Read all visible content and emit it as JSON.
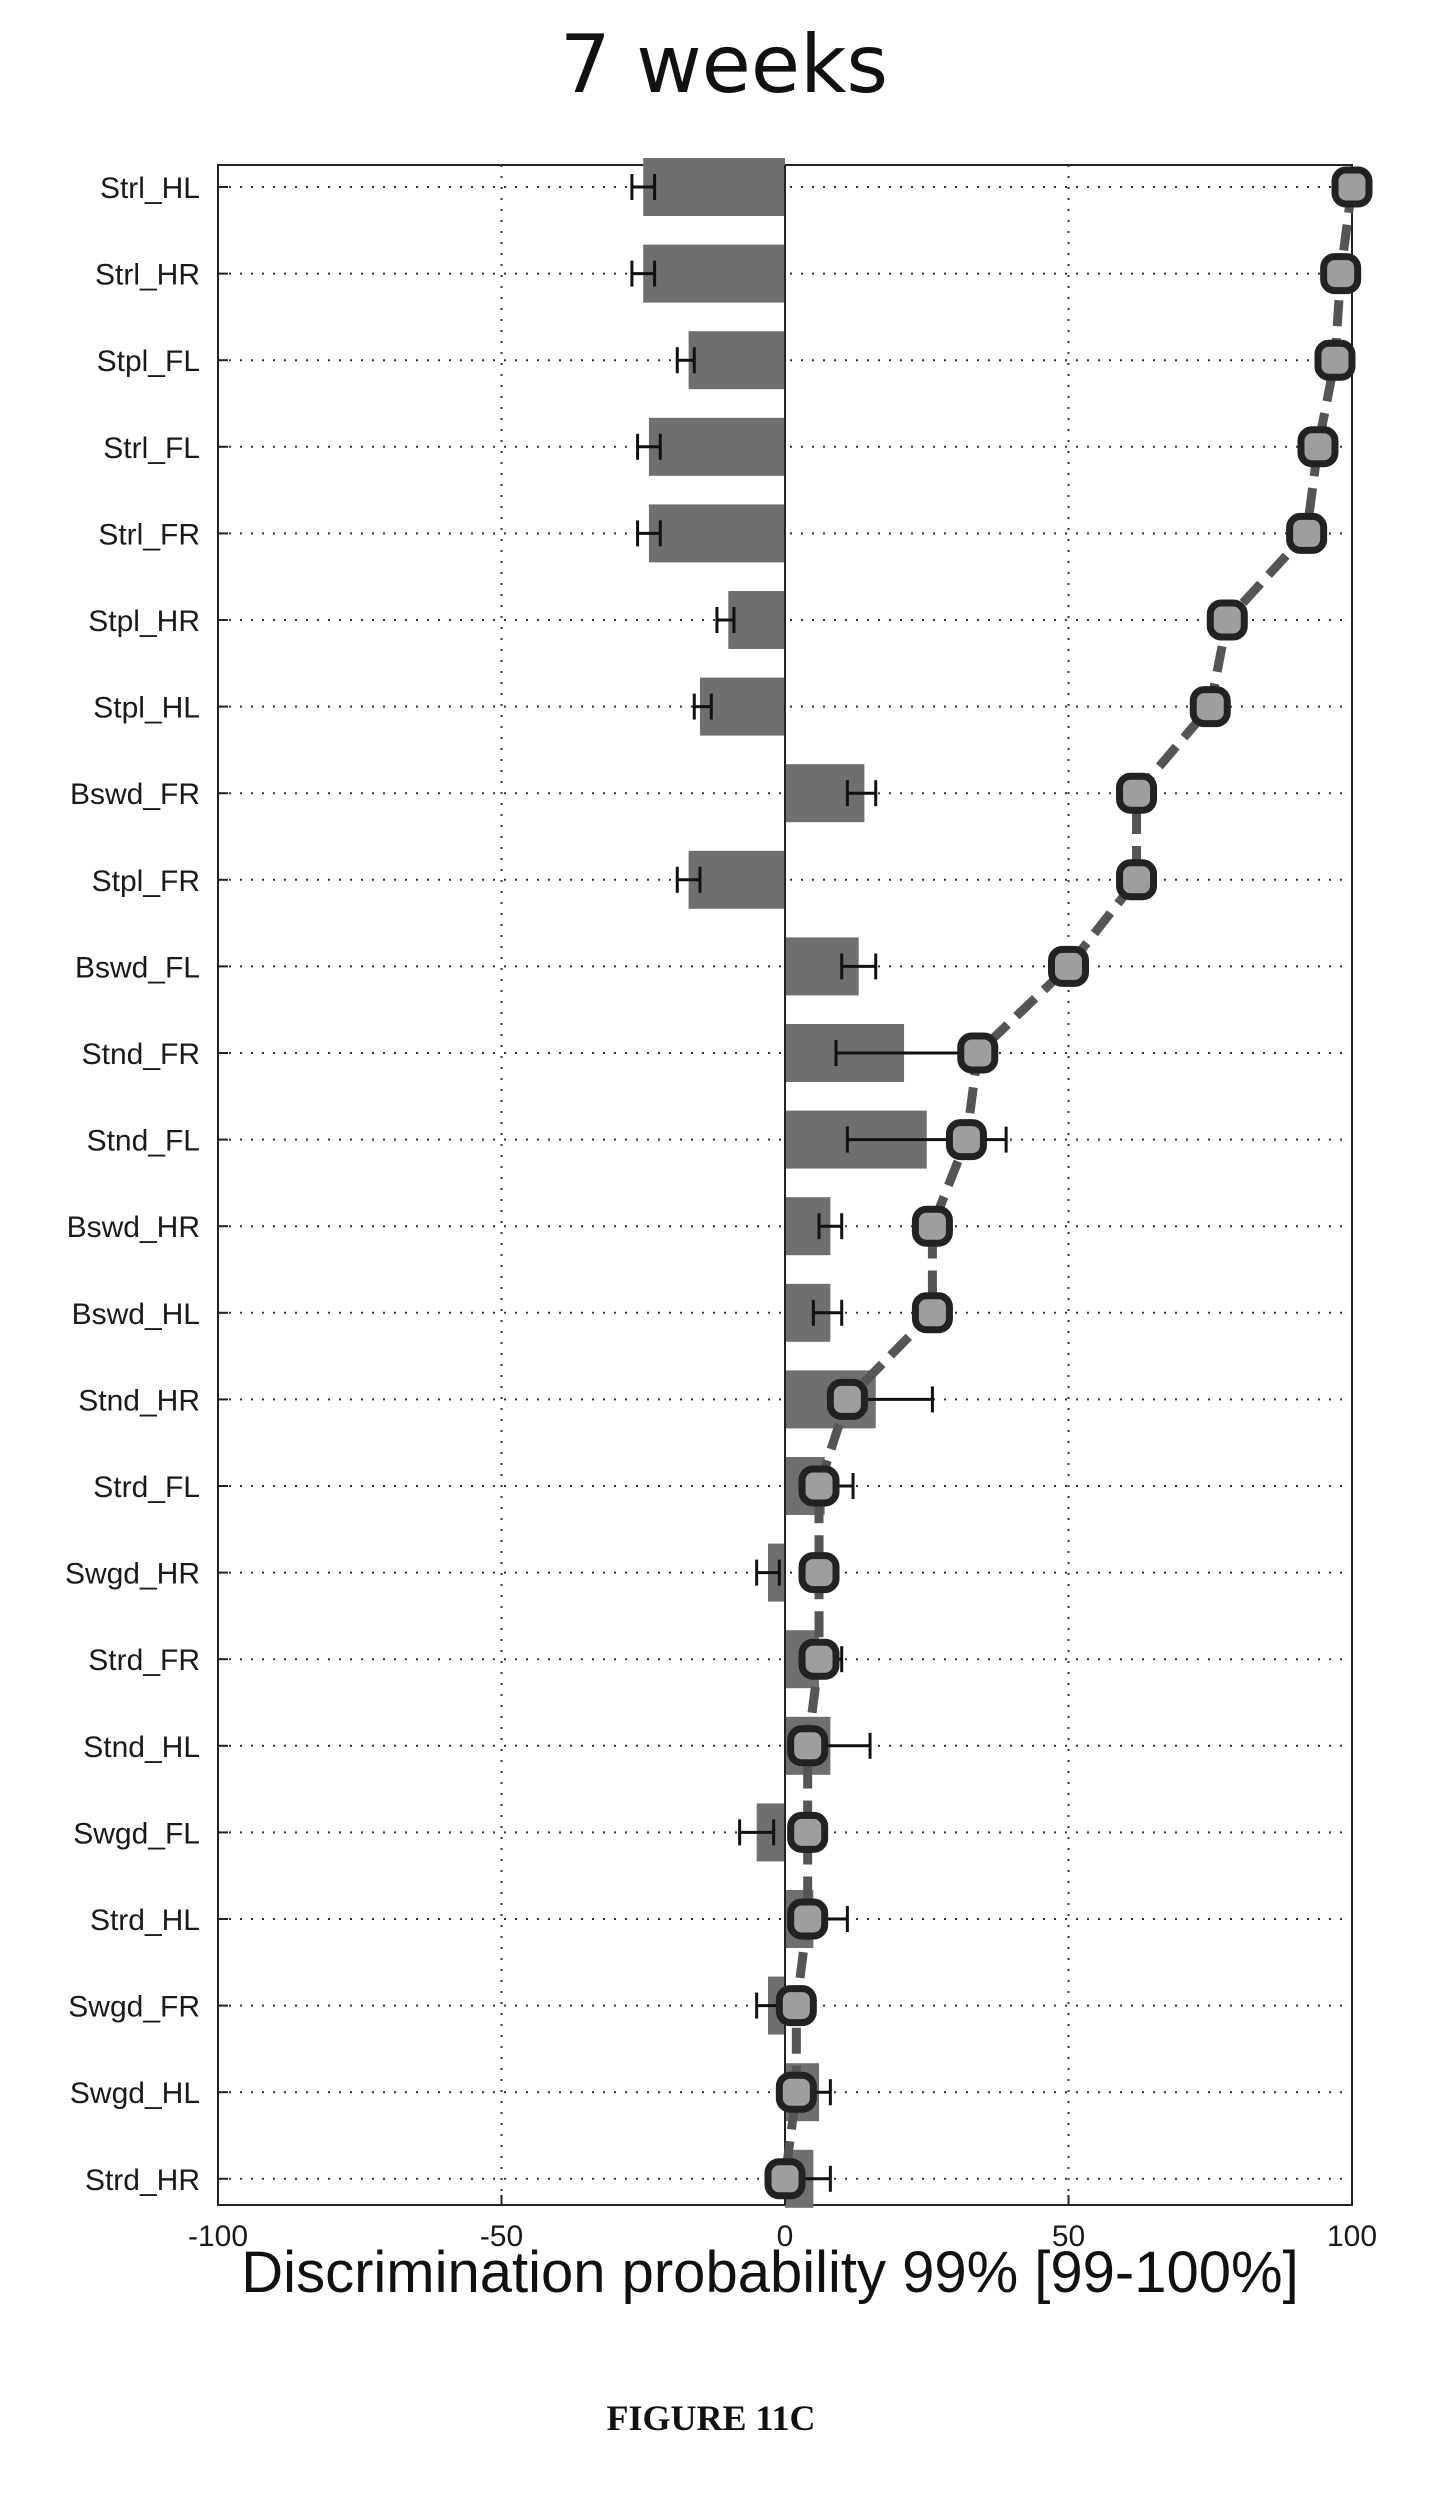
{
  "chart_data": {
    "type": "bar",
    "title": "7 weeks",
    "xlabel": "Discrimination probability 99% [99-100%]",
    "ylabel": "",
    "xlim": [
      -100,
      100
    ],
    "xticks": [
      "-100",
      "-50",
      "0",
      "50",
      "100"
    ],
    "grid": true,
    "categories": [
      "Strl_HL",
      "Strl_HR",
      "Stpl_FL",
      "Strl_FL",
      "Strl_FR",
      "Stpl_HR",
      "Stpl_HL",
      "Bswd_FR",
      "Stpl_FR",
      "Bswd_FL",
      "Stnd_FR",
      "Stnd_FL",
      "Bswd_HR",
      "Bswd_HL",
      "Stnd_HR",
      "Strd_FL",
      "Swgd_HR",
      "Strd_FR",
      "Stnd_HL",
      "Swgd_FL",
      "Strd_HL",
      "Swgd_FR",
      "Swgd_HL",
      "Strd_HR"
    ],
    "bars": [
      {
        "value": -25,
        "err_low": -27,
        "err_high": -23
      },
      {
        "value": -25,
        "err_low": -27,
        "err_high": -23
      },
      {
        "value": -17,
        "err_low": -19,
        "err_high": -16
      },
      {
        "value": -24,
        "err_low": -26,
        "err_high": -22
      },
      {
        "value": -24,
        "err_low": -26,
        "err_high": -22
      },
      {
        "value": -10,
        "err_low": -12,
        "err_high": -9
      },
      {
        "value": -15,
        "err_low": -16,
        "err_high": -13
      },
      {
        "value": 14,
        "err_low": 11,
        "err_high": 16
      },
      {
        "value": -17,
        "err_low": -19,
        "err_high": -15
      },
      {
        "value": 13,
        "err_low": 10,
        "err_high": 16
      },
      {
        "value": 21,
        "err_low": 9,
        "err_high": 33
      },
      {
        "value": 25,
        "err_low": 11,
        "err_high": 39
      },
      {
        "value": 8,
        "err_low": 6,
        "err_high": 10
      },
      {
        "value": 8,
        "err_low": 5,
        "err_high": 10
      },
      {
        "value": 16,
        "err_low": 8,
        "err_high": 26
      },
      {
        "value": 7,
        "err_low": 3,
        "err_high": 12
      },
      {
        "value": -3,
        "err_low": -5,
        "err_high": -1
      },
      {
        "value": 6,
        "err_low": 3,
        "err_high": 10
      },
      {
        "value": 8,
        "err_low": 2,
        "err_high": 15
      },
      {
        "value": -5,
        "err_low": -8,
        "err_high": -2
      },
      {
        "value": 5,
        "err_low": 1,
        "err_high": 11
      },
      {
        "value": -3,
        "err_low": -5,
        "err_high": -1
      },
      {
        "value": 6,
        "err_low": 2,
        "err_high": 8
      },
      {
        "value": 5,
        "err_low": 0,
        "err_high": 8
      }
    ],
    "line_values": [
      100,
      98,
      97,
      94,
      92,
      78,
      75,
      62,
      62,
      50,
      34,
      32,
      26,
      26,
      11,
      6,
      6,
      6,
      4,
      4,
      4,
      2,
      2,
      0
    ],
    "colors": {
      "bar": "#6f6f6f",
      "line": "#555555",
      "marker_fill": "#9e9e9e",
      "marker_edge": "#222222",
      "grid": "#333333"
    }
  },
  "caption": "FIGURE 11C"
}
